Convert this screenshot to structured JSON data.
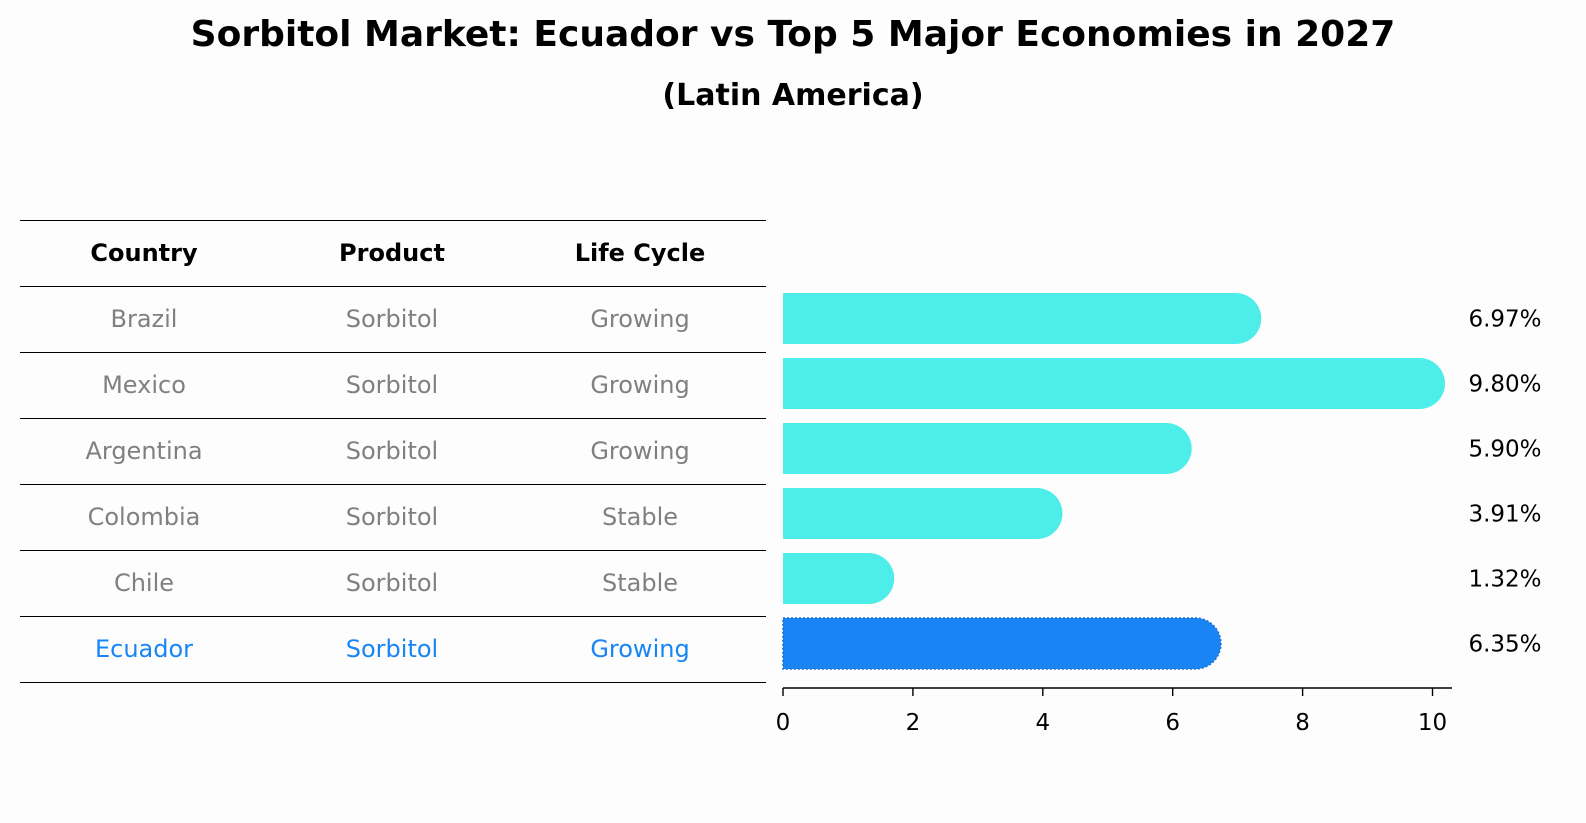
{
  "title": "Sorbitol Market: Ecuador vs Top 5 Major Economies in 2027",
  "subtitle": "(Latin America)",
  "table": {
    "columns": [
      "Country",
      "Product",
      "Life Cycle"
    ],
    "rows": [
      {
        "country": "Brazil",
        "product": "Sorbitol",
        "life_cycle": "Growing",
        "highlight": false
      },
      {
        "country": "Mexico",
        "product": "Sorbitol",
        "life_cycle": "Growing",
        "highlight": false
      },
      {
        "country": "Argentina",
        "product": "Sorbitol",
        "life_cycle": "Growing",
        "highlight": false
      },
      {
        "country": "Colombia",
        "product": "Sorbitol",
        "life_cycle": "Stable",
        "highlight": false
      },
      {
        "country": "Chile",
        "product": "Sorbitol",
        "life_cycle": "Stable",
        "highlight": false
      },
      {
        "country": "Ecuador",
        "product": "Sorbitol",
        "life_cycle": "Growing",
        "highlight": true
      }
    ]
  },
  "colors": {
    "bar": "#4deeea",
    "highlight": "#1985f5",
    "row_text": "#808080",
    "axis": "#000000"
  },
  "chart_data": {
    "type": "bar",
    "orientation": "horizontal",
    "categories": [
      "Brazil",
      "Mexico",
      "Argentina",
      "Colombia",
      "Chile",
      "Ecuador"
    ],
    "values": [
      6.97,
      9.8,
      5.9,
      3.91,
      1.32,
      6.35
    ],
    "value_labels": [
      "6.97%",
      "9.80%",
      "5.90%",
      "3.91%",
      "1.32%",
      "6.35%"
    ],
    "xlim": [
      0,
      10.3
    ],
    "xticks": [
      0,
      2,
      4,
      6,
      8,
      10
    ],
    "xlabel": "",
    "ylabel": "",
    "grid": false,
    "highlight_category": "Ecuador"
  }
}
